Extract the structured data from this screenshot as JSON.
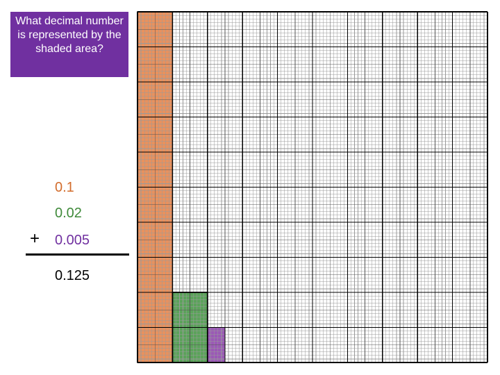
{
  "question": {
    "text": "What decimal number is represented by the shaded area?",
    "background": "#7030a0"
  },
  "addition": {
    "addends": [
      {
        "value": "0.1",
        "color": "#d26c2c"
      },
      {
        "value": "0.02",
        "color": "#3f8a3a"
      },
      {
        "value": "0.005",
        "color": "#7030a0"
      }
    ],
    "operator": "+",
    "sum": "0.125"
  },
  "grid": {
    "divisions": 1000,
    "shaded": [
      {
        "part": "tenths",
        "value": 0.1,
        "color": "#e8915e"
      },
      {
        "part": "hundredths",
        "value": 0.02,
        "color": "#5ba35a"
      },
      {
        "part": "thousandths",
        "value": 0.005,
        "color": "#9b59b6"
      }
    ]
  }
}
